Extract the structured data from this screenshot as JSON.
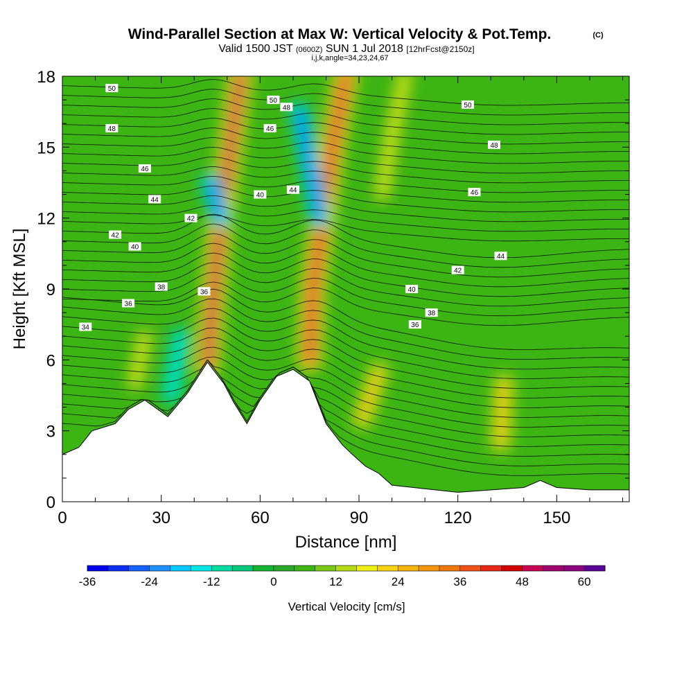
{
  "chart_data": {
    "type": "heatmap",
    "title": "Wind-Parallel Section at Max W: Vertical Velocity & Pot.Temp.",
    "title_mark": "(C)",
    "subtitle_parts": [
      "Valid 1500 JST",
      "(0600Z)",
      "SUN 1 Jul 2018",
      "[12hrFcst@2150z]"
    ],
    "subtitle2": "i,j,k,angle=34,23,24,67",
    "xlabel": "Distance [nm]",
    "ylabel": "Height [Kft MSL]",
    "xlim": [
      0,
      172
    ],
    "ylim": [
      0,
      18
    ],
    "x_ticks": [
      0,
      30,
      60,
      90,
      120,
      150
    ],
    "y_ticks": [
      0,
      3,
      6,
      9,
      12,
      15,
      18
    ],
    "colorbar": {
      "label": "Vertical Velocity [cm/s]",
      "min": -36,
      "step": 4,
      "ticks": [
        -36,
        -24,
        -12,
        0,
        12,
        24,
        36,
        48,
        60
      ],
      "colors": [
        "#0000ee",
        "#0a2ef5",
        "#1460f8",
        "#1e90fa",
        "#00c8ff",
        "#00e6e6",
        "#00dca0",
        "#00c878",
        "#14b432",
        "#28a828",
        "#3cb414",
        "#78c814",
        "#b4dc14",
        "#f0f014",
        "#f5d214",
        "#f5b40a",
        "#f5960a",
        "#f0780a",
        "#f05014",
        "#e62814",
        "#d20000",
        "#c80050",
        "#a0006e",
        "#8c0082",
        "#5a0096"
      ]
    },
    "potential_temperature_labels": [
      "34",
      "36",
      "38",
      "40",
      "42",
      "44",
      "46",
      "48",
      "50"
    ],
    "terrain_kft": [
      [
        0,
        2.0
      ],
      [
        5,
        2.3
      ],
      [
        9,
        3.0
      ],
      [
        16,
        3.3
      ],
      [
        20,
        3.9
      ],
      [
        25,
        4.3
      ],
      [
        32,
        3.6
      ],
      [
        38,
        4.6
      ],
      [
        44,
        5.9
      ],
      [
        49,
        5.0
      ],
      [
        52,
        4.2
      ],
      [
        56,
        3.3
      ],
      [
        60,
        4.3
      ],
      [
        65,
        5.3
      ],
      [
        70,
        5.6
      ],
      [
        75,
        5.1
      ],
      [
        80,
        3.3
      ],
      [
        85,
        2.4
      ],
      [
        88,
        2.0
      ],
      [
        92,
        1.5
      ],
      [
        96,
        1.2
      ],
      [
        100,
        0.7
      ],
      [
        120,
        0.4
      ],
      [
        140,
        0.6
      ],
      [
        145,
        0.9
      ],
      [
        150,
        0.6
      ],
      [
        160,
        0.5
      ],
      [
        172,
        0.5
      ]
    ],
    "vertical_velocity_features": [
      {
        "name": "updraft",
        "path": [
          [
            44,
            5.8
          ],
          [
            46,
            9.0
          ],
          [
            48,
            12.0
          ],
          [
            51,
            15.0
          ],
          [
            54,
            18.0
          ]
        ],
        "peak_cm_s": 52
      },
      {
        "name": "downdraft",
        "path": [
          [
            45,
            13.5
          ],
          [
            48,
            12.0
          ]
        ],
        "peak_cm_s": -30
      },
      {
        "name": "downdraft",
        "path": [
          [
            33,
            4.5
          ],
          [
            36,
            7.0
          ]
        ],
        "peak_cm_s": -14
      },
      {
        "name": "updraft",
        "path": [
          [
            75,
            6.0
          ],
          [
            76,
            9.0
          ],
          [
            79,
            12.0
          ],
          [
            82,
            15.0
          ],
          [
            86,
            18.0
          ]
        ],
        "peak_cm_s": 50
      },
      {
        "name": "downdraft",
        "path": [
          [
            72,
            16.5
          ],
          [
            78,
            12.0
          ]
        ],
        "peak_cm_s": -32
      },
      {
        "name": "updraft",
        "path": [
          [
            97,
            13.0
          ],
          [
            100,
            15.5
          ],
          [
            104,
            18.0
          ]
        ],
        "peak_cm_s": 18
      },
      {
        "name": "updraft",
        "path": [
          [
            22,
            5.0
          ],
          [
            25,
            7.0
          ]
        ],
        "peak_cm_s": 18
      },
      {
        "name": "updraft",
        "path": [
          [
            91,
            3.5
          ],
          [
            96,
            5.5
          ]
        ],
        "peak_cm_s": 24
      },
      {
        "name": "updraft",
        "path": [
          [
            133,
            2.5
          ],
          [
            134,
            5.0
          ]
        ],
        "peak_cm_s": 26
      }
    ]
  }
}
